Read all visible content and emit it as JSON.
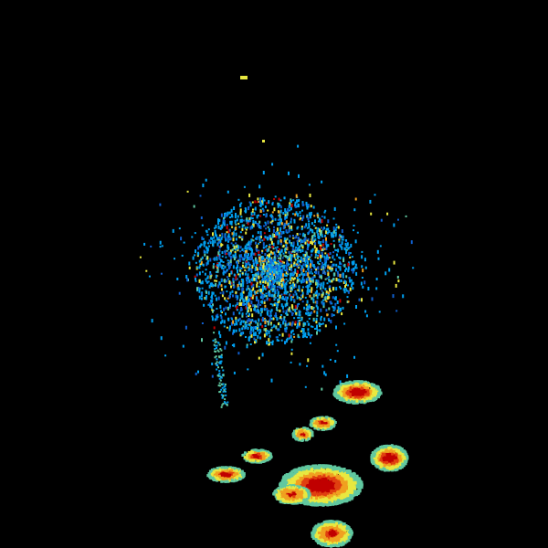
{
  "palette": {
    "background": "#000000",
    "levels": [
      "#1060d0",
      "#00a0f0",
      "#60c8a0",
      "#e8e840",
      "#f0a020",
      "#e04010",
      "#c00000"
    ]
  }
}
